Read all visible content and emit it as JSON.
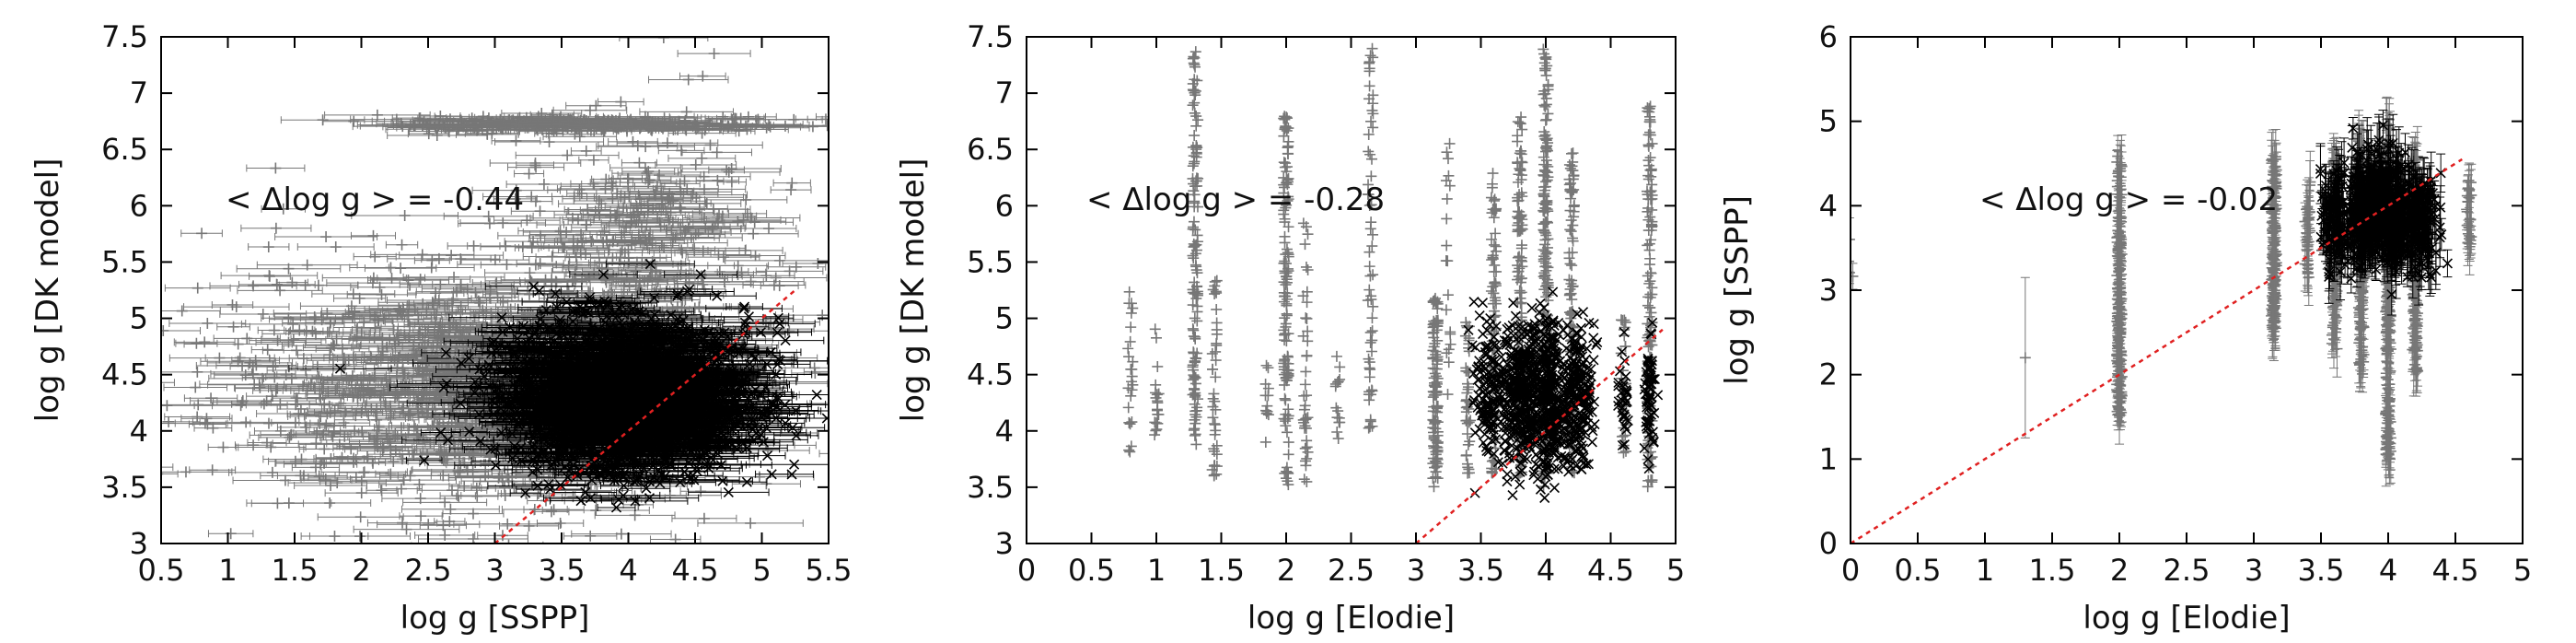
{
  "colors": {
    "model_points": "#777777",
    "subset_points": "#000000",
    "one_to_one_line": "#e02020"
  },
  "chart_data": [
    {
      "type": "scatter",
      "title": "",
      "xlabel": "log g [SSPP]",
      "ylabel": "log g [DK model]",
      "xlim": [
        0.5,
        5.5
      ],
      "ylim": [
        3,
        7.5
      ],
      "xticks": [
        "0.5",
        "1",
        "1.5",
        "2",
        "2.5",
        "3",
        "3.5",
        "4",
        "4.5",
        "5",
        "5.5"
      ],
      "yticks": [
        "3",
        "3.5",
        "4",
        "4.5",
        "5",
        "5.5",
        "6",
        "6.5",
        "7",
        "7.5"
      ],
      "annotation": "< Δlog g > = -0.44",
      "reference_line": {
        "from": [
          3.0,
          3.0
        ],
        "to": [
          5.25,
          5.25
        ]
      },
      "series": [
        {
          "color": "#777777",
          "marker": "plus-with-xerr",
          "clusters": [
            {
              "x": 2.9,
              "y": 4.4,
              "sx": 1.0,
              "sy": 0.55,
              "n": 1300
            },
            {
              "x": 3.7,
              "y": 6.72,
              "sx": 0.75,
              "sy": 0.04,
              "n": 260
            },
            {
              "x": 4.1,
              "y": 5.7,
              "sx": 0.45,
              "sy": 0.5,
              "n": 300
            }
          ],
          "points": [
            [
              4.45,
              7.12
            ]
          ]
        },
        {
          "color": "#000000",
          "marker": "cross-with-xerr",
          "clusters": [
            {
              "x": 4.0,
              "y": 4.3,
              "sx": 0.45,
              "sy": 0.33,
              "n": 2200
            }
          ]
        }
      ]
    },
    {
      "type": "scatter",
      "title": "",
      "xlabel": "log g [Elodie]",
      "ylabel": "log g [DK model]",
      "xlim": [
        0,
        5
      ],
      "ylim": [
        3,
        7.5
      ],
      "xticks": [
        "0",
        "0.5",
        "1",
        "1.5",
        "2",
        "2.5",
        "3",
        "3.5",
        "4",
        "4.5",
        "5"
      ],
      "yticks": [
        "3",
        "3.5",
        "4",
        "4.5",
        "5",
        "5.5",
        "6",
        "6.5",
        "7",
        "7.5"
      ],
      "annotation": "< Δlog g > = -0.28",
      "reference_line": {
        "from": [
          3.0,
          3.0
        ],
        "to": [
          4.9,
          4.9
        ]
      },
      "series": [
        {
          "color": "#777777",
          "marker": "plus",
          "columns": [
            {
              "x": 0.8,
              "ymin": 3.8,
              "ymax": 5.3,
              "n": 25
            },
            {
              "x": 1.0,
              "ymin": 3.9,
              "ymax": 5.0,
              "n": 20
            },
            {
              "x": 1.3,
              "ymin": 3.8,
              "ymax": 7.4,
              "n": 130
            },
            {
              "x": 1.45,
              "ymin": 3.6,
              "ymax": 5.6,
              "n": 40
            },
            {
              "x": 1.85,
              "ymin": 3.9,
              "ymax": 4.6,
              "n": 12
            },
            {
              "x": 2.0,
              "ymin": 3.5,
              "ymax": 6.8,
              "n": 130
            },
            {
              "x": 2.15,
              "ymin": 3.5,
              "ymax": 6.0,
              "n": 40
            },
            {
              "x": 2.4,
              "ymin": 3.9,
              "ymax": 4.7,
              "n": 15
            },
            {
              "x": 2.65,
              "ymin": 4.0,
              "ymax": 7.4,
              "n": 60
            },
            {
              "x": 3.15,
              "ymin": 3.5,
              "ymax": 5.2,
              "n": 120
            },
            {
              "x": 3.25,
              "ymin": 4.0,
              "ymax": 6.7,
              "n": 20
            },
            {
              "x": 3.4,
              "ymin": 3.6,
              "ymax": 5.0,
              "n": 40
            },
            {
              "x": 3.6,
              "ymin": 3.6,
              "ymax": 6.3,
              "n": 90
            },
            {
              "x": 3.8,
              "ymin": 3.6,
              "ymax": 6.8,
              "n": 140
            },
            {
              "x": 4.0,
              "ymin": 3.5,
              "ymax": 7.4,
              "n": 190
            },
            {
              "x": 4.2,
              "ymin": 3.6,
              "ymax": 6.5,
              "n": 100
            },
            {
              "x": 4.6,
              "ymin": 3.8,
              "ymax": 5.0,
              "n": 35
            },
            {
              "x": 4.8,
              "ymin": 3.5,
              "ymax": 6.9,
              "n": 140
            }
          ]
        },
        {
          "color": "#000000",
          "marker": "cross",
          "clusters": [
            {
              "x": 3.55,
              "y": 4.3,
              "sx": 0.05,
              "sy": 0.3,
              "n": 120
            },
            {
              "x": 3.8,
              "y": 4.3,
              "sx": 0.08,
              "sy": 0.32,
              "n": 320
            },
            {
              "x": 4.02,
              "y": 4.3,
              "sx": 0.08,
              "sy": 0.35,
              "n": 380
            },
            {
              "x": 4.25,
              "y": 4.3,
              "sx": 0.06,
              "sy": 0.3,
              "n": 200
            },
            {
              "x": 4.6,
              "y": 4.3,
              "sx": 0.02,
              "sy": 0.25,
              "n": 30
            },
            {
              "x": 4.8,
              "y": 4.3,
              "sx": 0.02,
              "sy": 0.3,
              "n": 60
            }
          ]
        }
      ]
    },
    {
      "type": "scatter",
      "title": "",
      "xlabel": "log g [Elodie]",
      "ylabel": "log g [SSPP]",
      "xlim": [
        0,
        5
      ],
      "ylim": [
        0,
        6
      ],
      "xticks": [
        "0",
        "0.5",
        "1",
        "1.5",
        "2",
        "2.5",
        "3",
        "3.5",
        "4",
        "4.5",
        "5"
      ],
      "yticks": [
        "0",
        "1",
        "2",
        "3",
        "4",
        "5",
        "6"
      ],
      "annotation": "< Δlog g > = -0.02",
      "reference_line": {
        "from": [
          0.0,
          0.0
        ],
        "to": [
          4.55,
          4.55
        ]
      },
      "series": [
        {
          "color": "#777777",
          "marker": "plus-with-yerr",
          "columns": [
            {
              "x": 0.0,
              "ymin": 3.0,
              "ymax": 3.8,
              "n": 3
            },
            {
              "x": 1.3,
              "ymin": 2.2,
              "ymax": 2.2,
              "n": 1,
              "err": 0.95
            },
            {
              "x": 2.0,
              "ymin": 1.5,
              "ymax": 4.6,
              "n": 160
            },
            {
              "x": 3.15,
              "ymin": 2.5,
              "ymax": 4.6,
              "n": 130
            },
            {
              "x": 3.4,
              "ymin": 3.0,
              "ymax": 4.3,
              "n": 30
            },
            {
              "x": 3.6,
              "ymin": 2.3,
              "ymax": 4.6,
              "n": 80
            },
            {
              "x": 3.8,
              "ymin": 2.0,
              "ymax": 4.8,
              "n": 110
            },
            {
              "x": 4.0,
              "ymin": 1.0,
              "ymax": 5.0,
              "n": 170
            },
            {
              "x": 4.2,
              "ymin": 2.0,
              "ymax": 4.6,
              "n": 90
            },
            {
              "x": 4.6,
              "ymin": 3.5,
              "ymax": 4.3,
              "n": 25
            }
          ]
        },
        {
          "color": "#000000",
          "marker": "cross-with-yerr",
          "clusters": [
            {
              "x": 3.6,
              "y": 3.8,
              "sx": 0.05,
              "sy": 0.3,
              "n": 90
            },
            {
              "x": 3.82,
              "y": 3.9,
              "sx": 0.08,
              "sy": 0.32,
              "n": 220
            },
            {
              "x": 4.02,
              "y": 3.95,
              "sx": 0.08,
              "sy": 0.35,
              "n": 280
            },
            {
              "x": 4.25,
              "y": 3.8,
              "sx": 0.06,
              "sy": 0.28,
              "n": 140
            }
          ]
        }
      ]
    }
  ]
}
